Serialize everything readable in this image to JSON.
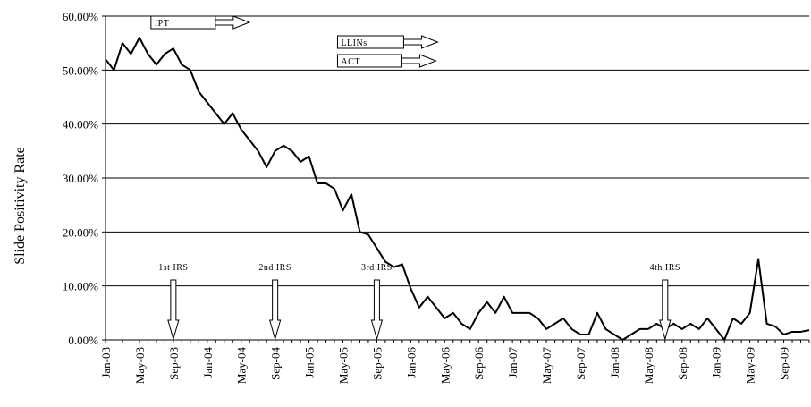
{
  "chart_data": {
    "type": "line",
    "ylabel": "Slide Positivity Rate",
    "ylim": [
      0,
      60
    ],
    "yticks": [
      "0.00%",
      "10.00%",
      "20.00%",
      "30.00%",
      "40.00%",
      "50.00%",
      "60.00%"
    ],
    "grid": "horizontal",
    "x_start": "Jan-03",
    "x_tick_labels": [
      "Jan-03",
      "May-03",
      "Sep-03",
      "Jan-04",
      "May-04",
      "Sep-04",
      "Jan-05",
      "May-05",
      "Sep-05",
      "Jan-06",
      "May-06",
      "Sep-06",
      "Jan-07",
      "May-07",
      "Sep-07",
      "Jan-08",
      "May-08",
      "Sep-08",
      "Jan-09",
      "May-09",
      "Sep-09"
    ],
    "series": [
      {
        "values": [
          52,
          50,
          55,
          53,
          56,
          53,
          51,
          53,
          54,
          51,
          50,
          46,
          44,
          42,
          40,
          42,
          39,
          37,
          35,
          32,
          35,
          36,
          35,
          33,
          34,
          29,
          29,
          28,
          24,
          27,
          20,
          19.5,
          17,
          14.5,
          13.5,
          14,
          9.5,
          6,
          8,
          6,
          4,
          5,
          3,
          2,
          5,
          7,
          5,
          8,
          5,
          5,
          5,
          4,
          2,
          3,
          4,
          2,
          1,
          1,
          5,
          2,
          1,
          0,
          1,
          2,
          2,
          3,
          2,
          3,
          2,
          3,
          2,
          4,
          2,
          0,
          4,
          3,
          5,
          15,
          3,
          2.5,
          1,
          1.5,
          1.5,
          1.8
        ]
      }
    ],
    "interventions": [
      {
        "label": "IPT",
        "start": "Sep-03"
      },
      {
        "label": "LLINs",
        "start": "Jul-05"
      },
      {
        "label": "ACT",
        "start": "Jul-05"
      }
    ],
    "irs_markers": [
      {
        "label": "1st IRS",
        "at": "Sep-03"
      },
      {
        "label": "2nd IRS",
        "at": "Sep-04"
      },
      {
        "label": "3rd IRS",
        "at": "Sep-05"
      },
      {
        "label": "4th IRS",
        "at": "Jul-08"
      }
    ]
  }
}
